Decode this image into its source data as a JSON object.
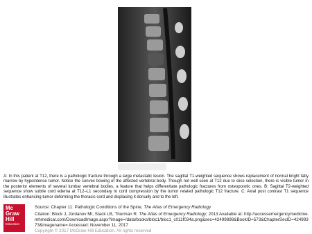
{
  "caption": "A: In this patient at T12, there is a pathologic fracture through a large metastatic lesion. The sagittal T1-weighted sequence shows replacement of normal bright fatty marrow by hypointense tumor. Notice the convex bowing of the affected vertebral body. Though not well seen at T12 due to slice selection, there is visible tumor in the posterior elements of several lumbar vertebral bodies, a feature that helps differentiate pathologic fractures from osteoporotic ones. B: Sagittal T2-weighted sequence show subtle cord edema at T12–L1 secondary to cord compression by the tumor related pathologic T12 fracture. C: Axial post contrast T1 sequence illustrates enhancing tumor deforming the thoracic cord and displacing it dorsally and to the left.",
  "logo": {
    "line1": "Mc",
    "line2": "Graw",
    "line3": "Hill",
    "line4": "Education"
  },
  "source": {
    "prefix": "Source: Chapter 11. Pathologic Conditions of the Spine,",
    "book": "The Atlas of Emergency Radiology"
  },
  "citation": {
    "prefix": "Citation: Block J, Jordanov MI, Stack LB, Thurman R.",
    "book": "The Atlas of Emergency Radiology",
    "rest": "; 2013 Available at: http://accessemergencymedicine.mhmedical.com/DownloadImage.aspx?image=/data/books/bloc1/bloc1_c011f034a.png&sec=42499898&BookID=573&ChapterSecID=42499373&imagename= Accessed: November 11, 2017"
  },
  "copyright": "Copyright © 2017 McGraw-Hill Education. All rights reserved"
}
